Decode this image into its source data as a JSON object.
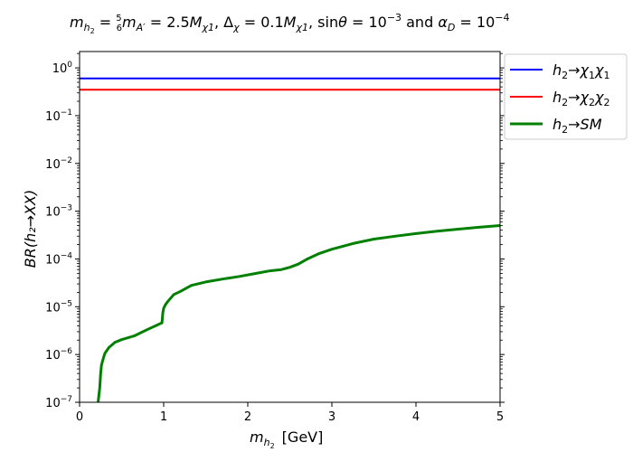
{
  "chart_data": {
    "type": "line",
    "title": "m_h2 = (5/6) m_A' = 2.5 M_χ1, Δ_χ = 0.1 M_χ1, sinθ = 10^-3 and α_D = 10^-4",
    "title_parts": {
      "t1": "m",
      "t1s": "h",
      "t1ss": "2",
      "t2": " = ",
      "frac_num": "5",
      "frac_den": "6",
      "t3": "m",
      "t3s": "A′",
      "t4": " = 2.5",
      "t5": "M",
      "t5s": "χ1",
      "t6": ", Δ",
      "t6s": "χ",
      "t7": " = 0.1",
      "t8": "M",
      "t8s": "χ1",
      "t9": ", sin",
      "t9b": "θ",
      "t10": " = 10",
      "t10p": "−3",
      "t11": " and ",
      "t12": "α",
      "t12s": "D",
      "t13": " = 10",
      "t13p": "−4"
    },
    "xlabel_parts": {
      "m": "m",
      "sub": "h",
      "subsub": "2",
      "unit": "[GeV]"
    },
    "ylabel": "BR(h₂→XX)",
    "xlim": [
      0,
      5
    ],
    "ylim": [
      1e-07,
      2.2
    ],
    "yscale": "log",
    "xticks": [
      0,
      1,
      2,
      3,
      4,
      5
    ],
    "xtick_labels": [
      "0",
      "1",
      "2",
      "3",
      "4",
      "5"
    ],
    "yticks": [
      1e-07,
      1e-06,
      1e-05,
      0.0001,
      0.001,
      0.01,
      0.1,
      1
    ],
    "ytick_labels": [
      {
        "base": "10",
        "exp": "−7"
      },
      {
        "base": "10",
        "exp": "−6"
      },
      {
        "base": "10",
        "exp": "−5"
      },
      {
        "base": "10",
        "exp": "−4"
      },
      {
        "base": "10",
        "exp": "−3"
      },
      {
        "base": "10",
        "exp": "−2"
      },
      {
        "base": "10",
        "exp": "−1"
      },
      {
        "base": "10",
        "exp": "0"
      }
    ],
    "grid": false,
    "legend_position": "outside-upper-right",
    "series": [
      {
        "name": "h₂→χ₁χ₁",
        "color": "#0000ff",
        "x": [
          0,
          5
        ],
        "y": [
          0.6,
          0.6
        ]
      },
      {
        "name": "h₂→χ₂χ₂",
        "color": "#ff0000",
        "x": [
          0,
          5
        ],
        "y": [
          0.35,
          0.35
        ]
      },
      {
        "name": "h₂→SM",
        "color": "#008000",
        "x": [
          0.22,
          0.24,
          0.25,
          0.26,
          0.28,
          0.3,
          0.35,
          0.42,
          0.5,
          0.65,
          0.8,
          0.98,
          0.99,
          1.0,
          1.02,
          1.05,
          1.12,
          1.2,
          1.33,
          1.5,
          1.7,
          1.9,
          2.1,
          2.25,
          2.4,
          2.5,
          2.6,
          2.7,
          2.85,
          3.0,
          3.25,
          3.5,
          3.75,
          4.0,
          4.25,
          4.5,
          4.75,
          5.0
        ],
        "y": [
          1e-07,
          2e-07,
          4e-07,
          6e-07,
          8e-07,
          1.05e-06,
          1.4e-06,
          1.8e-06,
          2.05e-06,
          2.45e-06,
          3.3e-06,
          4.6e-06,
          7.5e-06,
          9.3e-06,
          1.1e-05,
          1.3e-05,
          1.8e-05,
          2.1e-05,
          2.8e-05,
          3.3e-05,
          3.8e-05,
          4.3e-05,
          5e-05,
          5.6e-05,
          6e-05,
          6.7e-05,
          7.8e-05,
          9.8e-05,
          0.00013,
          0.00016,
          0.00021,
          0.00026,
          0.0003,
          0.00034,
          0.00038,
          0.00042,
          0.00046,
          0.0005
        ]
      }
    ],
    "legend_labels": [
      {
        "base": "h",
        "sub": "2",
        "arrow": "→",
        "a": "χ",
        "as": "1",
        "b": "χ",
        "bs": "1"
      },
      {
        "base": "h",
        "sub": "2",
        "arrow": "→",
        "a": "χ",
        "as": "2",
        "b": "χ",
        "bs": "2"
      },
      {
        "base": "h",
        "sub": "2",
        "arrow": "→",
        "a": "SM",
        "as": "",
        "b": "",
        "bs": ""
      }
    ]
  }
}
